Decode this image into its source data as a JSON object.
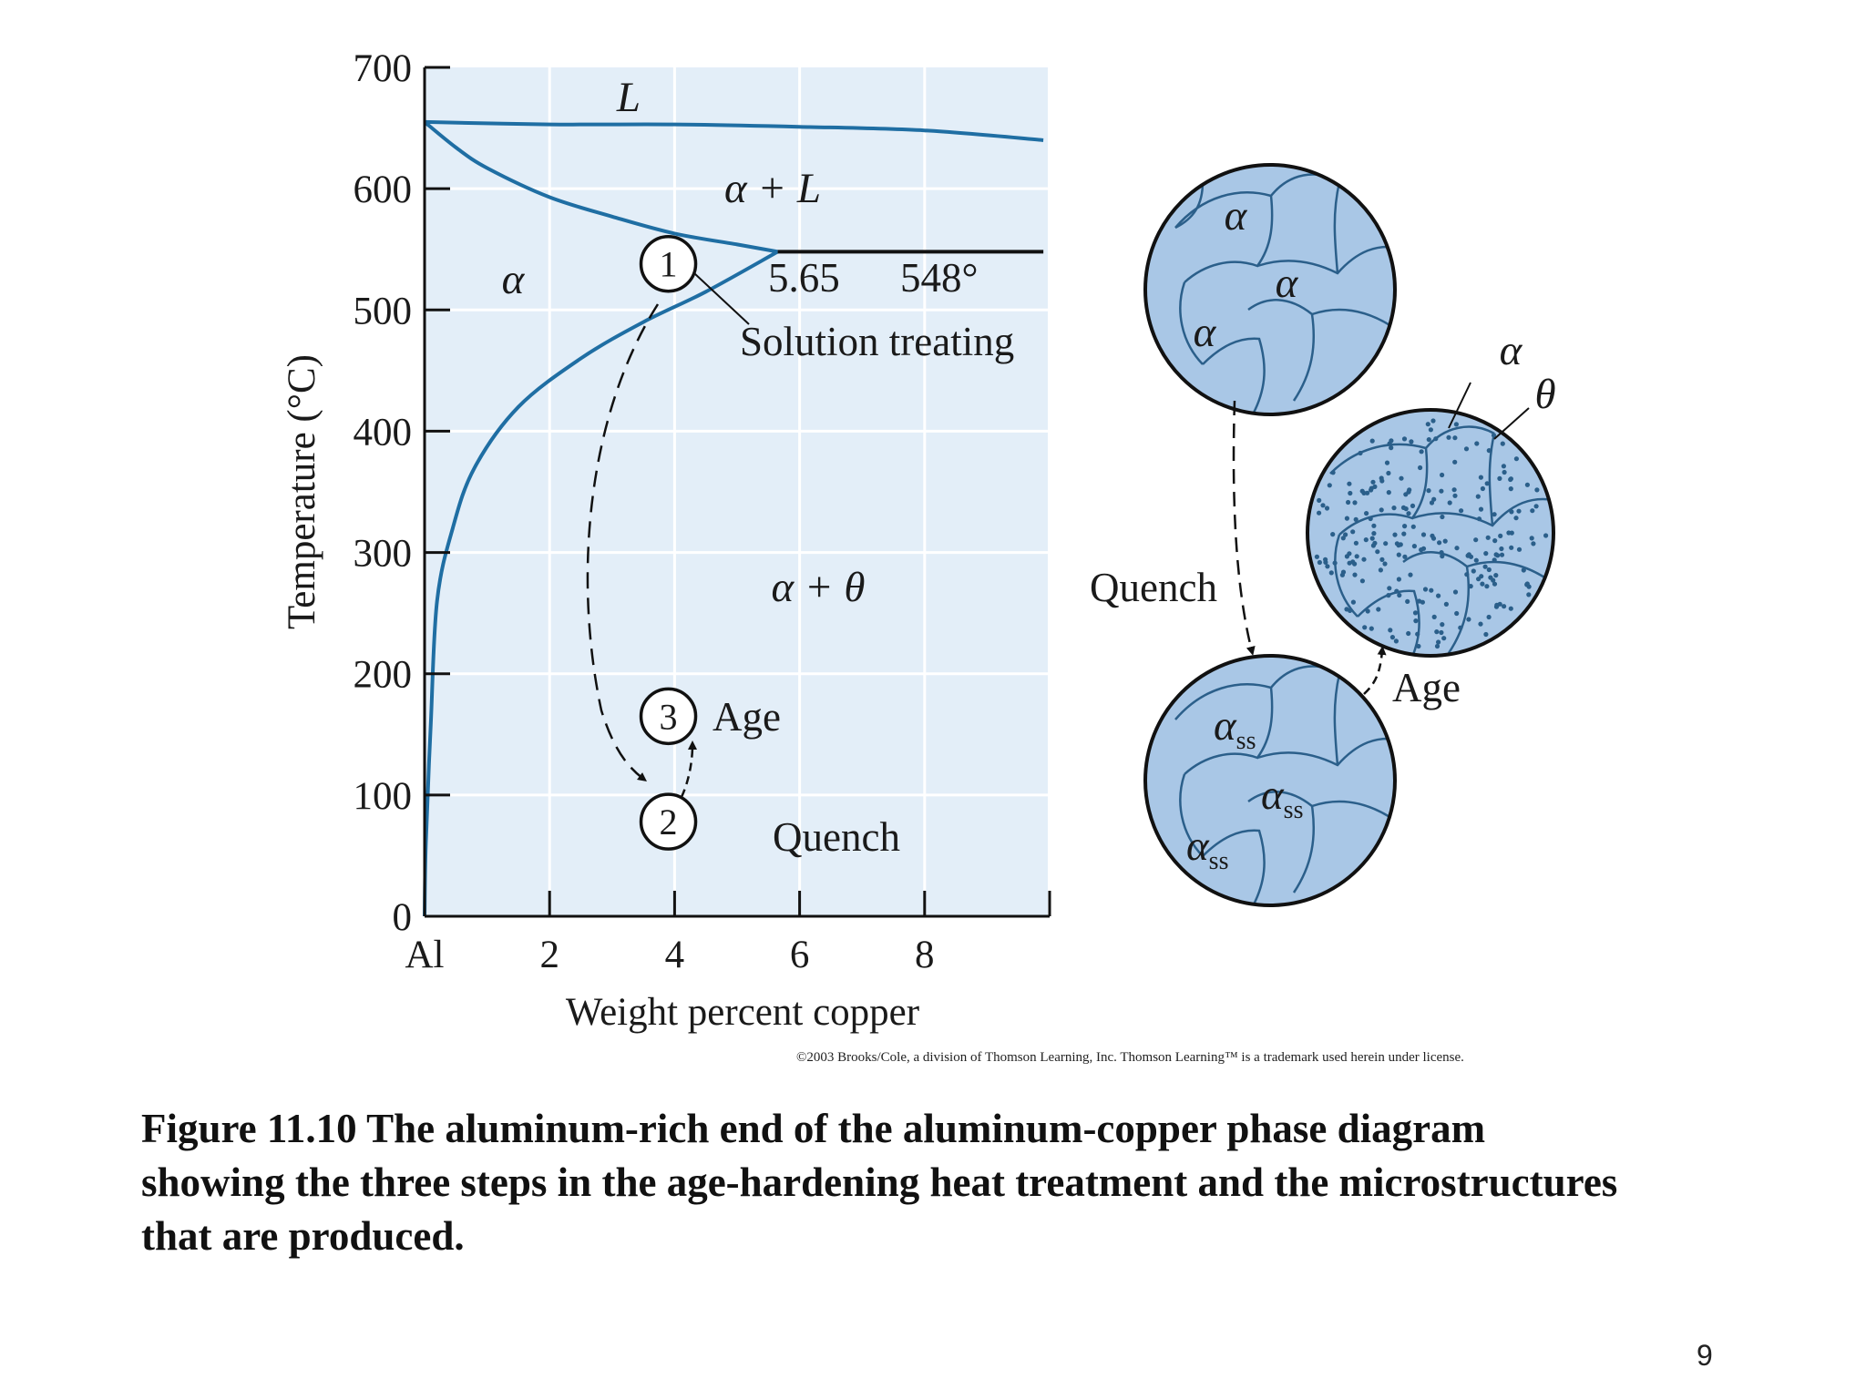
{
  "phase_diagram": {
    "x_axis": {
      "label": "Weight percent copper",
      "range": [
        0,
        10
      ],
      "ticks": [
        {
          "value": 0,
          "label": "Al"
        },
        {
          "value": 2,
          "label": "2"
        },
        {
          "value": 4,
          "label": "4"
        },
        {
          "value": 6,
          "label": "6"
        },
        {
          "value": 8,
          "label": "8"
        },
        {
          "value": 10,
          "label": ""
        }
      ]
    },
    "y_axis": {
      "label": "Temperature (°C)",
      "range": [
        0,
        700
      ],
      "ticks": [
        {
          "value": 0,
          "label": "0"
        },
        {
          "value": 100,
          "label": "100"
        },
        {
          "value": 200,
          "label": "200"
        },
        {
          "value": 300,
          "label": "300"
        },
        {
          "value": 400,
          "label": "400"
        },
        {
          "value": 500,
          "label": "500"
        },
        {
          "value": 600,
          "label": "600"
        },
        {
          "value": 700,
          "label": "700"
        }
      ]
    },
    "boundaries": {
      "liquidus": [
        [
          0,
          655
        ],
        [
          2,
          653
        ],
        [
          4,
          653
        ],
        [
          6,
          651
        ],
        [
          8,
          648
        ],
        [
          9.9,
          640
        ]
      ],
      "solidus": [
        [
          0,
          655
        ],
        [
          0.5,
          634
        ],
        [
          1,
          617
        ],
        [
          2,
          593
        ],
        [
          3,
          577
        ],
        [
          4,
          563
        ],
        [
          5,
          554
        ],
        [
          5.65,
          548
        ]
      ],
      "solvus": [
        [
          0,
          0
        ],
        [
          0.02,
          60
        ],
        [
          0.1,
          160
        ],
        [
          0.2,
          260
        ],
        [
          0.45,
          320
        ],
        [
          0.8,
          370
        ],
        [
          1.5,
          420
        ],
        [
          2.5,
          460
        ],
        [
          3.5,
          490
        ],
        [
          4.5,
          515
        ],
        [
          5.65,
          548
        ]
      ],
      "eutectic_line": [
        [
          5.65,
          548
        ],
        [
          9.9,
          548
        ]
      ]
    },
    "regions": {
      "liquid": "L",
      "alpha_liquid": "α + L",
      "alpha": "α",
      "alpha_theta": "α + θ"
    },
    "eutectic": {
      "composition_label": "5.65",
      "temperature_label": "548°"
    },
    "steps": [
      {
        "number": "1",
        "x": 3.9,
        "y": 538
      },
      {
        "number": "2",
        "x": 3.9,
        "y": 78
      },
      {
        "number": "3",
        "x": 3.9,
        "y": 165
      }
    ],
    "labels": {
      "solution_treating": "Solution treating",
      "age": "Age",
      "quench": "Quench"
    }
  },
  "microstructures": {
    "top": {
      "grains": [
        "α",
        "α",
        "α"
      ]
    },
    "aged": {
      "alpha_label": "α",
      "theta_label": "θ"
    },
    "bottom": {
      "base": "α",
      "subscript": "ss"
    },
    "quench_label": "Quench",
    "age_label": "Age"
  },
  "copyright": "©2003 Brooks/Cole, a division of Thomson Learning, Inc.  Thomson Learning™ is a trademark used herein under license.",
  "caption": {
    "line1": "Figure 11.10  The aluminum-rich end of the aluminum-copper phase diagram",
    "line2": "showing the three steps in the age-hardening heat treatment and the microstructures",
    "line3": "that are produced."
  },
  "page_number": "9",
  "colors": {
    "plot_bg": "#e3eef8",
    "curve": "#1f6ea3",
    "grain_fill": "#a9c7e6",
    "grain_line": "#2b5f8a",
    "outline": "#111111"
  }
}
